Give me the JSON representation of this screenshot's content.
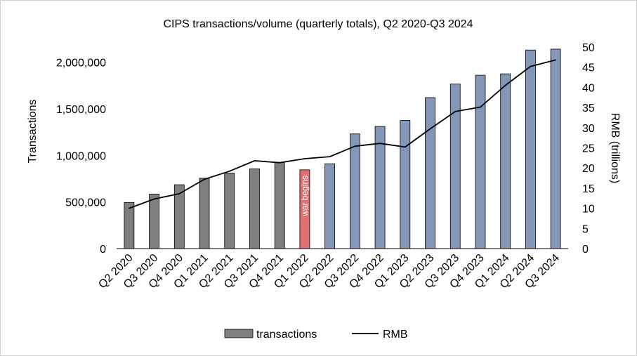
{
  "chart_data": {
    "type": "bar",
    "title": "CIPS transactions/volume (quarterly totals), Q2 2020-Q3 2024",
    "ylabel": "Transactions",
    "y2label": "RMB (trillions)",
    "ylim": [
      0,
      2200000
    ],
    "y2lim": [
      0,
      50
    ],
    "yticks": [
      "0",
      "500,000",
      "1,000,000",
      "1,500,000",
      "2,000,000"
    ],
    "y2ticks": [
      "0",
      "5",
      "10",
      "15",
      "20",
      "25",
      "30",
      "35",
      "40",
      "45",
      "50"
    ],
    "categories": [
      "Q2 2020",
      "Q3 2020",
      "Q4 2020",
      "Q1 2021",
      "Q2 2021",
      "Q3 2021",
      "Q4 2021",
      "Q1 2022",
      "Q2 2022",
      "Q3 2022",
      "Q4 2022",
      "Q1 2023",
      "Q2 2023",
      "Q3 2023",
      "Q4 2023",
      "Q1 2024",
      "Q2 2024",
      "Q3 2024"
    ],
    "series": [
      {
        "name": "transactions",
        "kind": "bar",
        "values": [
          495000,
          585000,
          685000,
          755000,
          810000,
          855000,
          925000,
          845000,
          910000,
          1230000,
          1310000,
          1375000,
          1620000,
          1765000,
          1860000,
          1875000,
          2130000,
          2140000
        ]
      },
      {
        "name": "RMB",
        "kind": "line",
        "axis": "secondary",
        "values": [
          10.0,
          12.3,
          13.6,
          17.2,
          19.2,
          21.8,
          21.3,
          22.3,
          22.8,
          25.4,
          26.1,
          25.2,
          29.7,
          34.0,
          35.1,
          40.5,
          45.2,
          46.8
        ]
      }
    ],
    "bar_colors": [
      "#7f7f7f",
      "#7f7f7f",
      "#7f7f7f",
      "#7f7f7f",
      "#7f7f7f",
      "#7f7f7f",
      "#7f7f7f",
      "#e07070",
      "#8497b8",
      "#8497b8",
      "#8497b8",
      "#8497b8",
      "#8497b8",
      "#8497b8",
      "#8497b8",
      "#8497b8",
      "#8497b8",
      "#8497b8"
    ],
    "line_color": "#000000",
    "annotation": {
      "text": "war begins",
      "category": "Q1 2022"
    },
    "legend": {
      "position": "bottom",
      "entries": [
        "transactions",
        "RMB"
      ],
      "swatch_color": "#7f7f7f"
    }
  }
}
